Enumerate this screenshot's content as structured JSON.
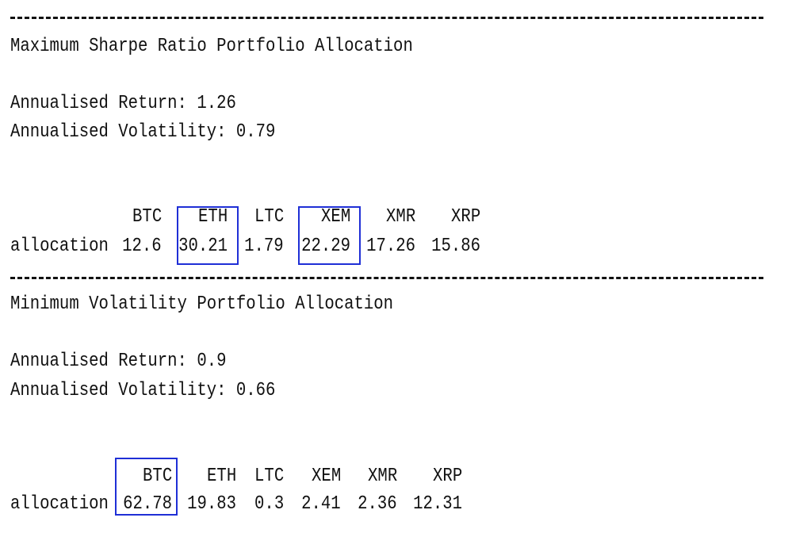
{
  "sections": [
    {
      "title": "Maximum Sharpe Ratio Portfolio Allocation",
      "return_line": "Annualised Return: 1.26",
      "volatility_line": "Annualised Volatility: 0.79",
      "row_label": "allocation",
      "assets": [
        "BTC",
        "ETH",
        "LTC",
        "XEM",
        "XMR",
        "XRP"
      ],
      "values": [
        "12.6",
        "30.21",
        "1.79",
        "22.29",
        "17.26",
        "15.86"
      ],
      "highlighted": [
        "ETH",
        "XEM"
      ]
    },
    {
      "title": "Minimum Volatility Portfolio Allocation",
      "return_line": "Annualised Return: 0.9",
      "volatility_line": "Annualised Volatility: 0.66",
      "row_label": "allocation",
      "assets": [
        "BTC",
        "ETH",
        "LTC",
        "XEM",
        "XMR",
        "XRP"
      ],
      "values": [
        "62.78",
        "19.83",
        "0.3",
        "2.41",
        "2.36",
        "12.31"
      ],
      "highlighted": [
        "BTC"
      ]
    }
  ],
  "colors": {
    "text": "#111111",
    "highlight_box": "#1f2fd6",
    "background": "#ffffff"
  }
}
